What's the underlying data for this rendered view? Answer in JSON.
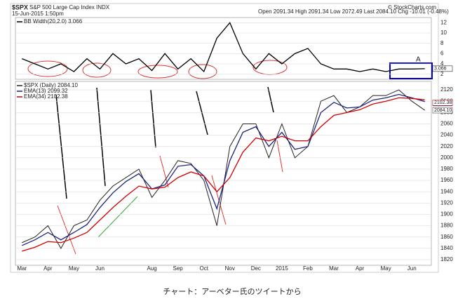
{
  "header": {
    "symbol": "$SPX",
    "name": "S&P 500 Large Cap Index INDX",
    "date": "15-Jun-2015 1:50pm",
    "quote": "Open 2091.34 High 2091.34 Low 2072.49 Last 2084.10 Chg -10.01 (-0.48%)",
    "source": "© StockCharts.com"
  },
  "caption": "チャート：アーベター氏のツイートから",
  "chart_data": [
    {
      "type": "line",
      "annotation": "A",
      "ylim": [
        1,
        13
      ],
      "yticks": [
        2,
        4,
        6,
        8,
        10,
        12
      ],
      "series": [
        {
          "name": "BB Width(20,2.0) 3.066",
          "color": "#000000",
          "end_label": "3.066",
          "values": [
            5,
            4,
            3,
            4,
            2.5,
            5,
            3,
            6,
            4,
            5,
            2.7,
            6,
            3,
            5,
            2.5,
            9,
            12,
            6,
            3,
            6,
            4,
            6,
            7,
            4,
            3,
            3,
            2.5,
            3,
            2.5,
            3,
            3,
            3.066
          ]
        }
      ]
    },
    {
      "type": "line",
      "ylim": [
        1810,
        2135
      ],
      "yticks": [
        1820,
        1840,
        1860,
        1880,
        1900,
        1920,
        1940,
        1960,
        1980,
        2000,
        2020,
        2040,
        2060,
        2080,
        2100,
        2120
      ],
      "categories": [
        "Mar",
        null,
        "Apr",
        null,
        "May",
        null,
        "Jun",
        null,
        null,
        null,
        "Aug",
        null,
        "Sep",
        null,
        "Oct",
        null,
        "Nov",
        null,
        "Dec",
        null,
        "2015",
        null,
        "Feb",
        null,
        "Mar",
        null,
        "Apr",
        null,
        "May",
        null,
        "Jun",
        null
      ],
      "series": [
        {
          "name": "$SPX (Daily) 2084.10",
          "color": "#222222",
          "end_label": "2084.10",
          "values": [
            1850,
            1860,
            1880,
            1840,
            1880,
            1890,
            1925,
            1950,
            1965,
            1980,
            1930,
            1960,
            1995,
            1990,
            1960,
            1880,
            2020,
            2060,
            2060,
            2000,
            2060,
            2000,
            2020,
            2100,
            2110,
            2080,
            2090,
            2110,
            2110,
            2120,
            2100,
            2084.1
          ]
        },
        {
          "name": "EMA(13) 2099.32",
          "color": "#1a237e",
          "end_label": "2099.32",
          "values": [
            1845,
            1855,
            1868,
            1855,
            1868,
            1882,
            1912,
            1938,
            1958,
            1972,
            1945,
            1952,
            1985,
            1988,
            1968,
            1910,
            1995,
            2045,
            2055,
            2020,
            2045,
            2015,
            2020,
            2080,
            2098,
            2088,
            2090,
            2102,
            2106,
            2112,
            2106,
            2099.32
          ]
        },
        {
          "name": "EMA(34) 2102.38",
          "color": "#d00000",
          "end_label": "2102.38",
          "values": [
            1835,
            1842,
            1852,
            1850,
            1858,
            1868,
            1890,
            1912,
            1932,
            1950,
            1945,
            1948,
            1965,
            1975,
            1968,
            1940,
            1965,
            2010,
            2035,
            2030,
            2038,
            2030,
            2030,
            2055,
            2075,
            2080,
            2085,
            2095,
            2100,
            2106,
            2105,
            2102.38
          ]
        }
      ]
    }
  ]
}
